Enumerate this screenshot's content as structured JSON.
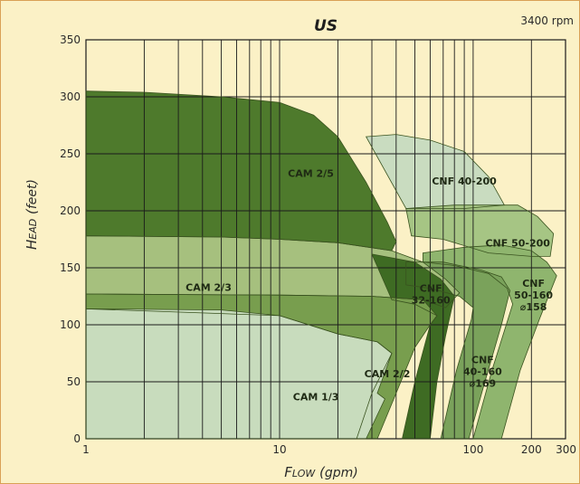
{
  "chart_data": {
    "type": "area",
    "title": "US",
    "subtitle": "3400 rpm",
    "xlabel": "Flow (gpm)",
    "ylabel": "Head (feet)",
    "x_scale": "log",
    "xlim": [
      1,
      300
    ],
    "ylim": [
      0,
      350
    ],
    "x_ticks": [
      {
        "value": 1,
        "label": "1"
      },
      {
        "value": 10,
        "label": "10"
      },
      {
        "value": 100,
        "label": "100"
      },
      {
        "value": 200,
        "label": "200"
      },
      {
        "value": 300,
        "label": "300"
      }
    ],
    "y_ticks": [
      {
        "value": 0,
        "label": "0"
      },
      {
        "value": 50,
        "label": "50"
      },
      {
        "value": 100,
        "label": "100"
      },
      {
        "value": 150,
        "label": "150"
      },
      {
        "value": 200,
        "label": "200"
      },
      {
        "value": 250,
        "label": "250"
      },
      {
        "value": 300,
        "label": "300"
      },
      {
        "value": 350,
        "label": "350"
      }
    ],
    "grid": true,
    "series": [
      {
        "name": "CNF 40-200",
        "color": "#c9dcc0",
        "label": [
          "CNF 40-200"
        ],
        "label_at": [
          90,
          226
        ],
        "outline": [
          [
            28,
            265
          ],
          [
            40,
            267
          ],
          [
            60,
            262
          ],
          [
            90,
            252
          ],
          [
            120,
            230
          ],
          [
            145,
            205
          ],
          [
            90,
            202
          ],
          [
            45,
            202
          ]
        ]
      },
      {
        "name": "CNF 50-200",
        "color": "#a6c584",
        "label": [
          "CNF 50-200"
        ],
        "label_at": [
          170,
          172
        ],
        "outline": [
          [
            45,
            202
          ],
          [
            80,
            205
          ],
          [
            120,
            205
          ],
          [
            170,
            205
          ],
          [
            215,
            195
          ],
          [
            260,
            180
          ],
          [
            250,
            160
          ],
          [
            200,
            160
          ],
          [
            120,
            163
          ],
          [
            70,
            175
          ],
          [
            48,
            178
          ]
        ]
      },
      {
        "name": "CAM 2/5",
        "color": "#4e7a2c",
        "label": [
          "CAM 2/5"
        ],
        "label_at": [
          14.5,
          233
        ],
        "outline": [
          [
            1,
            305
          ],
          [
            2,
            304
          ],
          [
            5,
            300
          ],
          [
            10,
            295
          ],
          [
            15,
            284
          ],
          [
            20,
            265
          ],
          [
            28,
            225
          ],
          [
            36,
            190
          ],
          [
            40,
            173
          ],
          [
            38,
            165
          ],
          [
            20,
            172
          ],
          [
            10,
            175
          ],
          [
            5,
            177
          ],
          [
            1,
            178
          ]
        ]
      },
      {
        "name": "CNF 50-160 ⌀158",
        "color": "#8fb56e",
        "label": [
          "CNF",
          "50-160",
          "⌀158"
        ],
        "label_at": [
          205,
          126
        ],
        "outline": [
          [
            55,
            163
          ],
          [
            90,
            168
          ],
          [
            140,
            170
          ],
          [
            200,
            165
          ],
          [
            240,
            155
          ],
          [
            270,
            143
          ],
          [
            220,
            105
          ],
          [
            175,
            60
          ],
          [
            140,
            0
          ],
          [
            100,
            0
          ],
          [
            125,
            60
          ],
          [
            160,
            118
          ],
          [
            150,
            132
          ],
          [
            120,
            145
          ],
          [
            80,
            152
          ],
          [
            55,
            155
          ]
        ]
      },
      {
        "name": "CNF 40-160 ⌀169",
        "color": "#7aa25b",
        "label": [
          "CNF",
          "40-160",
          "⌀169"
        ],
        "label_at": [
          112,
          59
        ],
        "outline": [
          [
            45,
            155
          ],
          [
            70,
            155
          ],
          [
            110,
            148
          ],
          [
            140,
            142
          ],
          [
            155,
            130
          ],
          [
            140,
            100
          ],
          [
            115,
            50
          ],
          [
            95,
            0
          ],
          [
            68,
            0
          ],
          [
            82,
            60
          ],
          [
            98,
            105
          ],
          [
            100,
            115
          ],
          [
            85,
            125
          ],
          [
            60,
            132
          ],
          [
            45,
            135
          ]
        ]
      },
      {
        "name": "CAM 2/3",
        "color": "#a6c07e",
        "label": [
          "CAM 2/3"
        ],
        "label_at": [
          4.3,
          133
        ],
        "outline": [
          [
            1,
            178
          ],
          [
            5,
            177
          ],
          [
            10,
            175
          ],
          [
            20,
            172
          ],
          [
            38,
            165
          ],
          [
            55,
            155
          ],
          [
            72,
            140
          ],
          [
            85,
            128
          ],
          [
            72,
            115
          ],
          [
            55,
            122
          ],
          [
            30,
            125
          ],
          [
            10,
            126
          ],
          [
            1,
            127
          ]
        ]
      },
      {
        "name": "CNF 32-160",
        "color": "#3e6b23",
        "label": [
          "CNF",
          "32-160"
        ],
        "label_at": [
          60.5,
          127
        ],
        "outline": [
          [
            30,
            162
          ],
          [
            50,
            155
          ],
          [
            68,
            140
          ],
          [
            80,
            125
          ],
          [
            72,
            90
          ],
          [
            65,
            50
          ],
          [
            60,
            0
          ],
          [
            43,
            0
          ],
          [
            50,
            50
          ],
          [
            60,
            100
          ],
          [
            65,
            108
          ],
          [
            50,
            118
          ],
          [
            38,
            122
          ]
        ]
      },
      {
        "name": "CAM 2/2",
        "color": "#789e4e",
        "label": [
          "CAM 2/2"
        ],
        "label_at": [
          36,
          57
        ],
        "outline": [
          [
            1,
            127
          ],
          [
            10,
            126
          ],
          [
            30,
            125
          ],
          [
            55,
            122
          ],
          [
            65,
            108
          ],
          [
            60,
            100
          ],
          [
            50,
            80
          ],
          [
            40,
            40
          ],
          [
            32,
            0
          ],
          [
            25,
            0
          ],
          [
            30,
            40
          ],
          [
            38,
            75
          ],
          [
            32,
            85
          ],
          [
            20,
            92
          ],
          [
            10,
            108
          ],
          [
            1,
            114
          ]
        ]
      },
      {
        "name": "CAM 1/3",
        "color": "#c8dcbd",
        "label": [
          "CAM 1/3"
        ],
        "label_at": [
          15.4,
          37
        ],
        "outline": [
          [
            1,
            114
          ],
          [
            5,
            113
          ],
          [
            10,
            108
          ],
          [
            20,
            92
          ],
          [
            32,
            85
          ],
          [
            38,
            75
          ],
          [
            32,
            40
          ],
          [
            35,
            35
          ],
          [
            28,
            0
          ],
          [
            1,
            0
          ]
        ]
      }
    ]
  }
}
